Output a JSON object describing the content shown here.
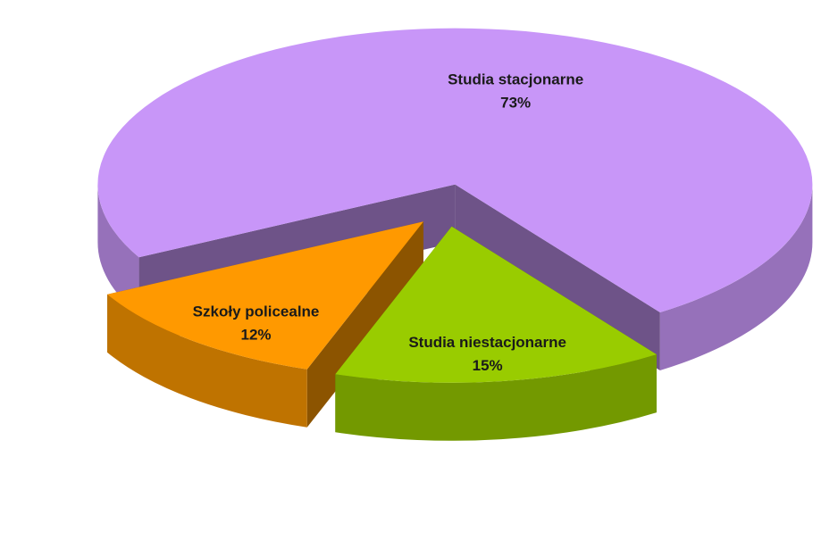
{
  "chart_data": {
    "type": "pie",
    "categories": [
      "Studia stacjonarne",
      "Studia niestacjonarne",
      "Szkoły policealne"
    ],
    "values": [
      73,
      15,
      12
    ],
    "value_labels": [
      "73%",
      "15%",
      "12%"
    ],
    "colors": [
      "#c896f8",
      "#99cc00",
      "#ff9900"
    ]
  }
}
